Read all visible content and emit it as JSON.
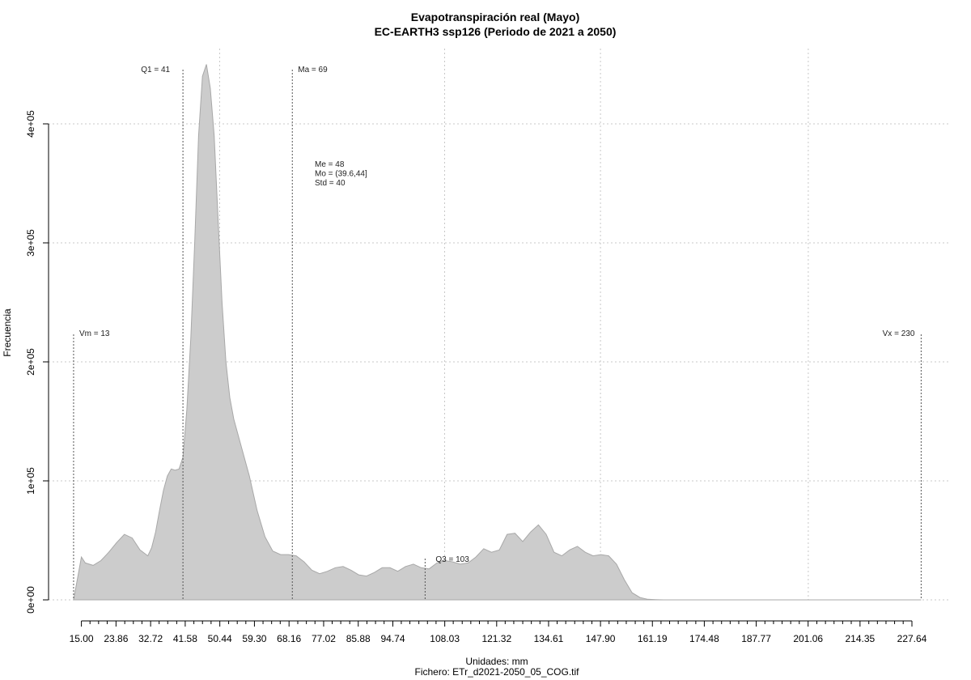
{
  "chart_data": {
    "type": "area",
    "title": "Evapotranspiración real (Mayo)",
    "subtitle": "EC-EARTH3 ssp126 (Periodo de 2021 a 2050)",
    "xlabel": "Unidades: mm",
    "ylabel": "Frecuencia",
    "caption": "Fichero: ETr_d2021-2050_05_COG.tif",
    "xlim": [
      15,
      228
    ],
    "ylim": [
      0,
      450000
    ],
    "x_ticks": [
      15.0,
      23.86,
      32.72,
      41.58,
      50.44,
      59.3,
      68.16,
      77.02,
      85.88,
      94.74,
      108.03,
      121.32,
      134.61,
      147.9,
      161.19,
      174.48,
      187.77,
      201.06,
      214.35,
      227.64
    ],
    "x_tick_labels": [
      "15.00",
      "23.86",
      "32.72",
      "41.58",
      "50.44",
      "59.30",
      "68.16",
      "77.02",
      "85.88",
      "94.74",
      "108.03",
      "121.32",
      "134.61",
      "147.90",
      "161.19",
      "174.48",
      "187.77",
      "201.06",
      "214.35",
      "227.64"
    ],
    "x_minor_ticks": [
      17.2,
      19.4,
      21.6,
      26.1,
      28.3,
      30.5,
      34.9,
      37.1,
      39.4,
      43.8,
      46.0,
      48.2,
      52.7,
      54.9,
      57.1,
      61.5,
      63.7,
      65.9,
      70.4,
      72.6,
      74.8,
      79.2,
      81.4,
      83.7,
      88.1,
      90.3,
      92.5,
      96.9,
      99.1,
      101.4,
      103.6,
      105.8,
      110.2,
      112.5,
      114.7,
      116.9,
      119.1,
      123.5,
      125.7,
      128.0,
      130.2,
      132.4,
      136.8,
      139.0,
      141.3,
      143.5,
      145.7,
      150.1,
      152.3,
      154.5,
      156.8,
      159.0,
      163.4,
      165.6,
      167.8,
      170.0,
      172.3,
      176.7,
      178.9,
      181.1,
      183.3,
      185.5,
      190.0,
      192.2,
      194.4,
      196.6,
      198.8,
      203.3,
      205.5,
      207.7,
      209.9,
      212.1,
      216.6,
      218.8,
      221.0,
      223.2,
      225.4
    ],
    "y_ticks": [
      0,
      100000,
      200000,
      300000,
      400000
    ],
    "y_tick_labels": [
      "0e+00",
      "1e+05",
      "2e+05",
      "3e+05",
      "4e+05"
    ],
    "grid_x": [
      50.4,
      108.0,
      147.9,
      201.1
    ],
    "grid": true,
    "series": [
      {
        "x": [
          13,
          14,
          15,
          16,
          18,
          20,
          22,
          24,
          26,
          28,
          30,
          32,
          33,
          34,
          35,
          36,
          37,
          38,
          39,
          40,
          41,
          42,
          43,
          44,
          45,
          46,
          47,
          48,
          49,
          50,
          51,
          52,
          53,
          54,
          56,
          58,
          60,
          62,
          64,
          66,
          68,
          70,
          72,
          74,
          76,
          78,
          80,
          82,
          84,
          86,
          88,
          90,
          92,
          94,
          96,
          98,
          100,
          102,
          104,
          106,
          108,
          110,
          112,
          114,
          116,
          118,
          120,
          122,
          124,
          126,
          128,
          130,
          132,
          134,
          136,
          138,
          140,
          142,
          144,
          146,
          148,
          150,
          152,
          154,
          156,
          158,
          160,
          162,
          164,
          166,
          168,
          170,
          175,
          180,
          190,
          200,
          210,
          220,
          230
        ],
        "values": [
          0,
          18000,
          36000,
          31000,
          29000,
          33000,
          40000,
          48000,
          55000,
          52000,
          42000,
          37000,
          44000,
          57000,
          75000,
          92000,
          104000,
          110000,
          109000,
          110000,
          120000,
          160000,
          220000,
          300000,
          390000,
          440000,
          450000,
          430000,
          390000,
          320000,
          250000,
          200000,
          170000,
          152000,
          128000,
          104000,
          75000,
          53000,
          41000,
          38000,
          38000,
          37000,
          32000,
          25000,
          22000,
          24000,
          27000,
          28000,
          25000,
          21000,
          20000,
          23000,
          27000,
          27000,
          24000,
          28000,
          30000,
          27000,
          26000,
          31000,
          33000,
          32000,
          30000,
          31000,
          36000,
          43000,
          40000,
          42000,
          55000,
          56000,
          49000,
          57000,
          63000,
          55000,
          40000,
          37000,
          42000,
          45000,
          40000,
          37000,
          38000,
          37000,
          30000,
          17000,
          6000,
          2000,
          500,
          200,
          0,
          0,
          0,
          0,
          0,
          0,
          0,
          0,
          0,
          0,
          0
        ],
        "color": "#cccccc"
      }
    ],
    "annotations": {
      "q1": {
        "label": "Q1 = 41",
        "x": 41
      },
      "ma": {
        "label": "Ma = 69",
        "x": 69
      },
      "q3": {
        "label": "Q3 = 103",
        "x": 103
      },
      "vm": {
        "label": "Vm = 13",
        "x": 13
      },
      "vx": {
        "label": "Vx = 230",
        "x": 230
      },
      "stats": [
        "Me = 48",
        "Mo = (39.6,44]",
        "Std = 40"
      ]
    }
  }
}
